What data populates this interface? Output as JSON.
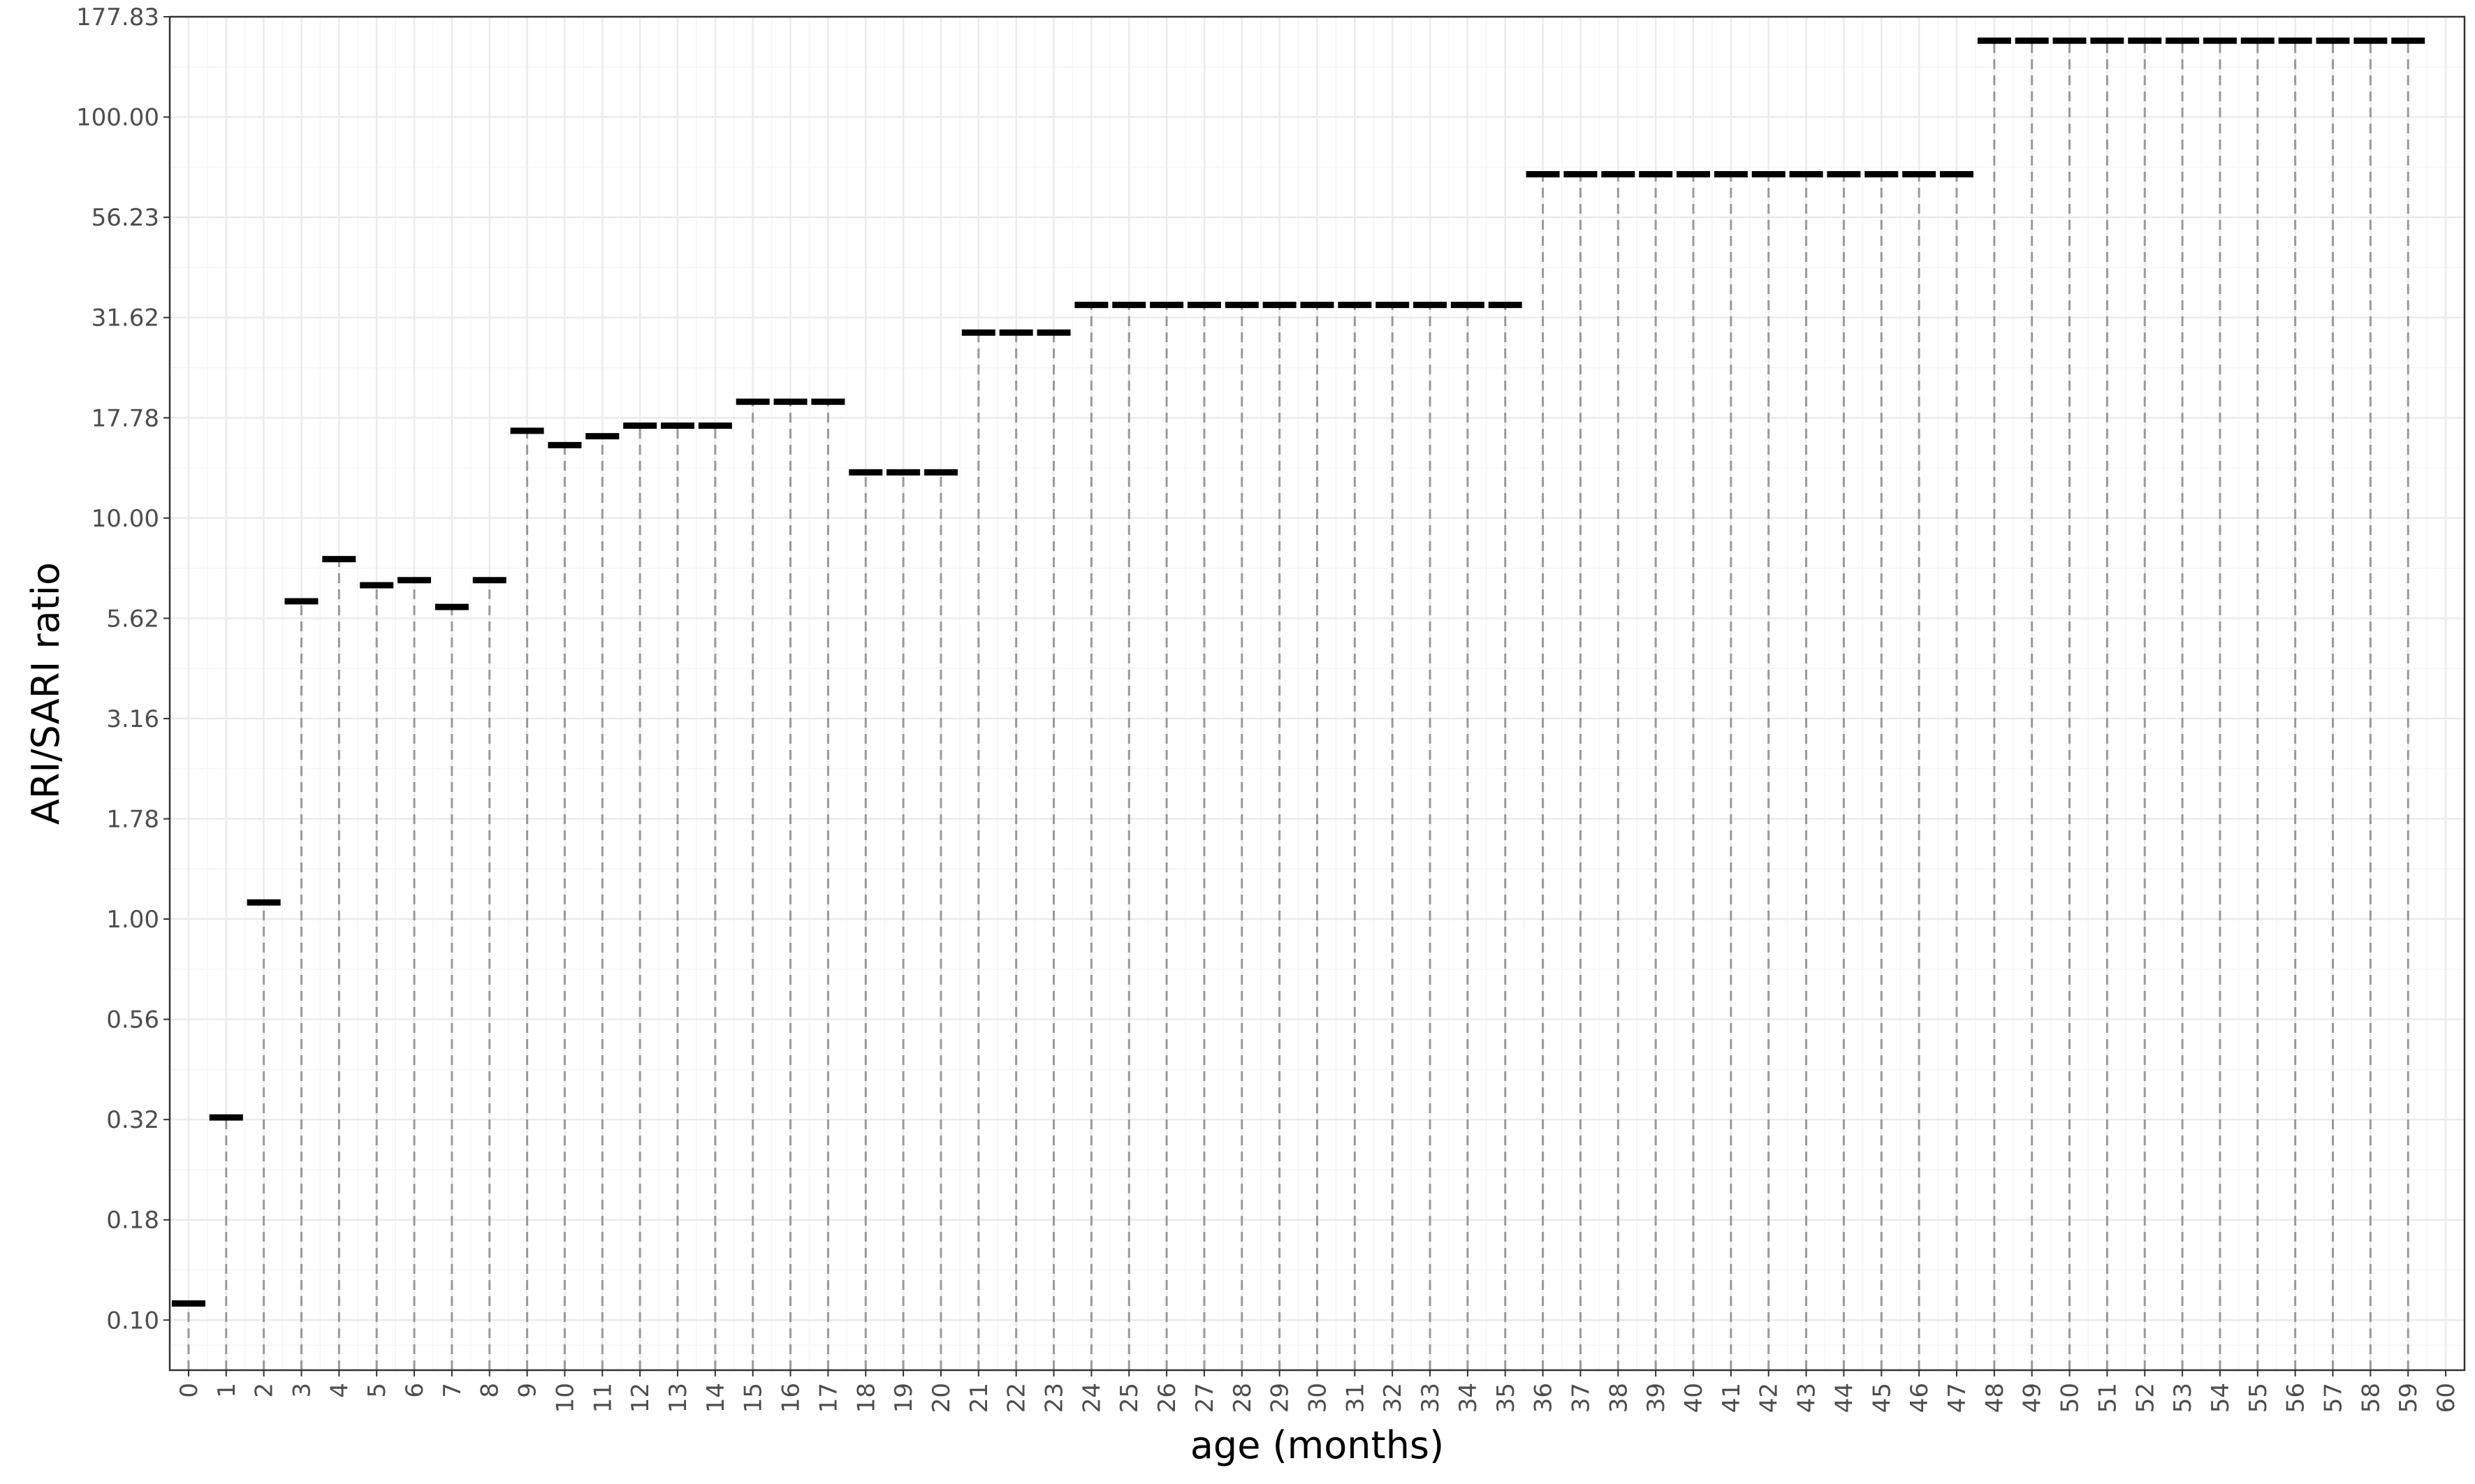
{
  "chart_data": {
    "type": "bar",
    "title": "",
    "xlabel": "age (months)",
    "ylabel": "ARI/SARI ratio",
    "y_scale": "log10",
    "ylim": [
      0.075,
      177.83
    ],
    "x_ticks": [
      "0",
      "1",
      "2",
      "3",
      "4",
      "5",
      "6",
      "7",
      "8",
      "9",
      "10",
      "11",
      "12",
      "13",
      "14",
      "15",
      "16",
      "17",
      "18",
      "19",
      "20",
      "21",
      "22",
      "23",
      "24",
      "25",
      "26",
      "27",
      "28",
      "29",
      "30",
      "31",
      "32",
      "33",
      "34",
      "35",
      "36",
      "37",
      "38",
      "39",
      "40",
      "41",
      "42",
      "43",
      "44",
      "45",
      "46",
      "47",
      "48",
      "49",
      "50",
      "51",
      "52",
      "53",
      "54",
      "55",
      "56",
      "57",
      "58",
      "59",
      "60"
    ],
    "y_ticks": [
      "0.10",
      "0.18",
      "0.32",
      "0.56",
      "1.00",
      "1.78",
      "3.16",
      "5.62",
      "10.00",
      "17.78",
      "31.62",
      "56.23",
      "100.00",
      "177.83"
    ],
    "y_tick_values": [
      0.1,
      0.1778,
      0.3162,
      0.5623,
      1.0,
      1.778,
      3.162,
      5.623,
      10.0,
      17.78,
      31.62,
      56.23,
      100.0,
      177.83
    ],
    "x": [
      0,
      1,
      2,
      3,
      4,
      5,
      6,
      7,
      8,
      9,
      10,
      11,
      12,
      13,
      14,
      15,
      16,
      17,
      18,
      19,
      20,
      21,
      22,
      23,
      24,
      25,
      26,
      27,
      28,
      29,
      30,
      31,
      32,
      33,
      34,
      35,
      36,
      37,
      38,
      39,
      40,
      41,
      42,
      43,
      44,
      45,
      46,
      47,
      48,
      49,
      50,
      51,
      52,
      53,
      54,
      55,
      56,
      57,
      58,
      59
    ],
    "values": [
      0.11,
      0.32,
      1.1,
      6.2,
      7.9,
      6.8,
      7.0,
      6.0,
      7.0,
      16.5,
      15.2,
      16.0,
      17.0,
      17.0,
      17.0,
      19.5,
      19.5,
      19.5,
      13.0,
      13.0,
      13.0,
      29.0,
      29.0,
      29.0,
      34.0,
      34.0,
      34.0,
      34.0,
      34.0,
      34.0,
      34.0,
      34.0,
      34.0,
      34.0,
      34.0,
      34.0,
      72.0,
      72.0,
      72.0,
      72.0,
      72.0,
      72.0,
      72.0,
      72.0,
      72.0,
      72.0,
      72.0,
      72.0,
      155.0,
      155.0,
      155.0,
      155.0,
      155.0,
      155.0,
      155.0,
      155.0,
      155.0,
      155.0,
      155.0,
      155.0
    ],
    "grid": true,
    "legend": "none",
    "colors": {
      "mark": "#000000",
      "stem": "#999999",
      "grid_major": "#ebebeb",
      "grid_minor": "#f5f5f5",
      "panel_border": "#333333"
    }
  }
}
